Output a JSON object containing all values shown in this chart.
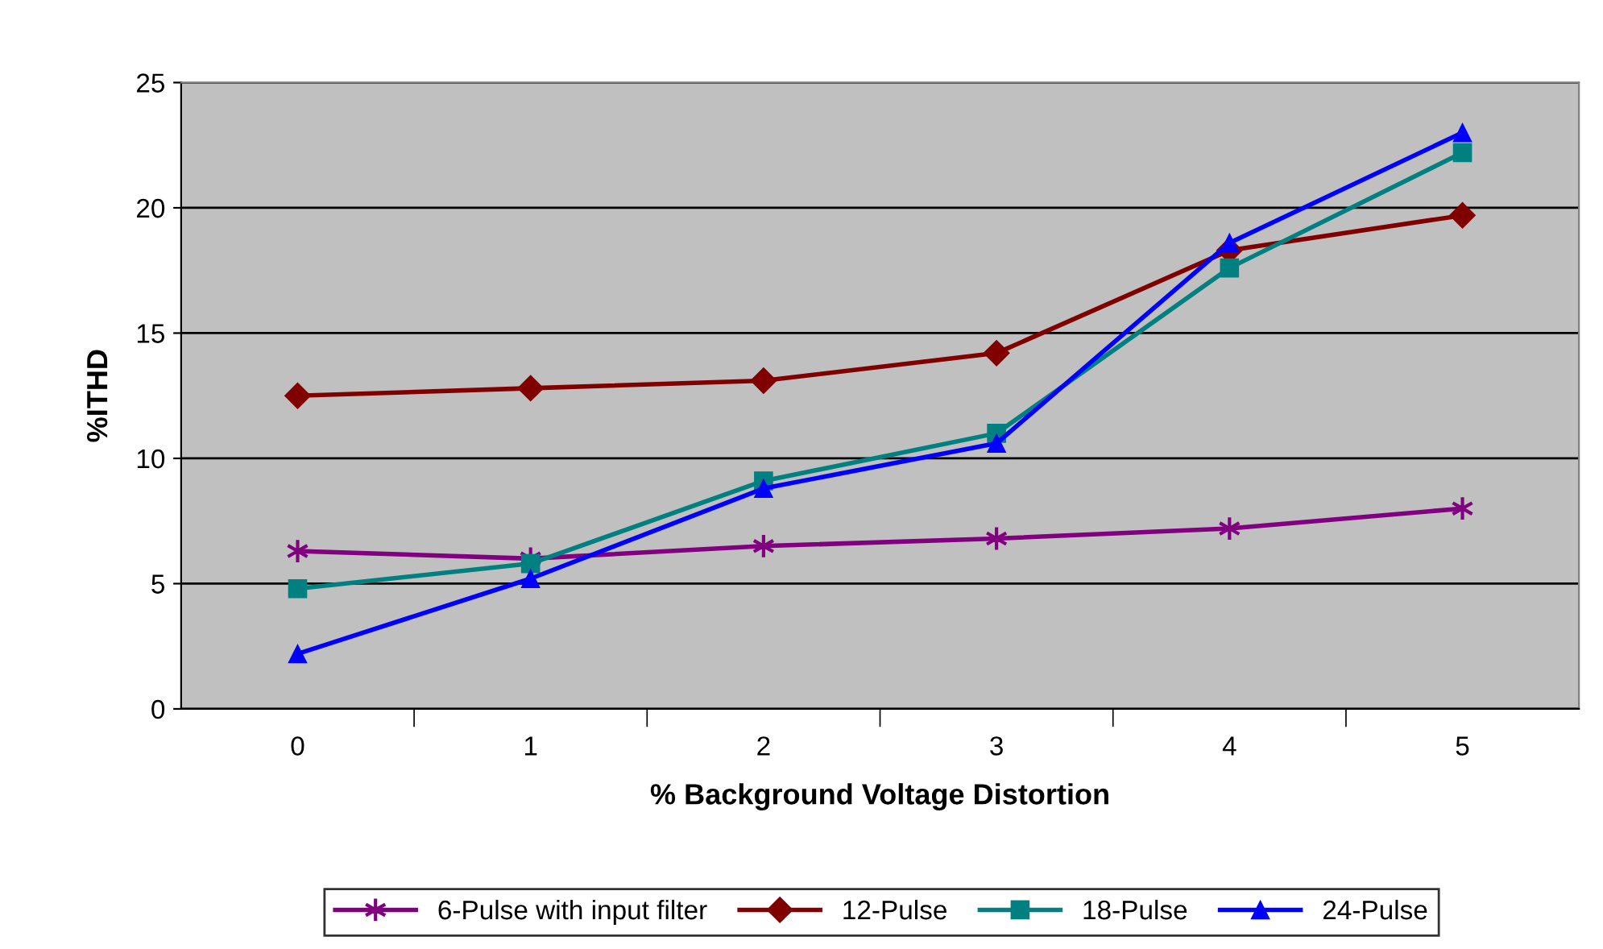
{
  "chart_data": {
    "type": "line",
    "xlabel": "% Background Voltage Distortion",
    "ylabel": "%ITHD",
    "categories": [
      "0",
      "1",
      "2",
      "3",
      "4",
      "5"
    ],
    "series": [
      {
        "name": "6-Pulse with input filter",
        "color": "#800080",
        "marker": "cross",
        "values": [
          6.3,
          6.0,
          6.5,
          6.8,
          7.2,
          8.0
        ]
      },
      {
        "name": "12-Pulse",
        "color": "#800000",
        "marker": "diamond",
        "values": [
          12.5,
          12.8,
          13.1,
          14.2,
          18.3,
          19.7
        ]
      },
      {
        "name": "18-Pulse",
        "color": "#008080",
        "marker": "square",
        "values": [
          4.8,
          5.8,
          9.1,
          11.0,
          17.6,
          22.2
        ]
      },
      {
        "name": "24-Pulse",
        "color": "#0000ff",
        "marker": "triangle",
        "values": [
          2.2,
          5.2,
          8.8,
          10.6,
          18.6,
          23.0
        ]
      }
    ],
    "ylim": [
      0,
      25
    ],
    "yticks": [
      0,
      5,
      10,
      15,
      20,
      25
    ],
    "grid": "y",
    "legend": "bottom",
    "line_style": "solid"
  }
}
